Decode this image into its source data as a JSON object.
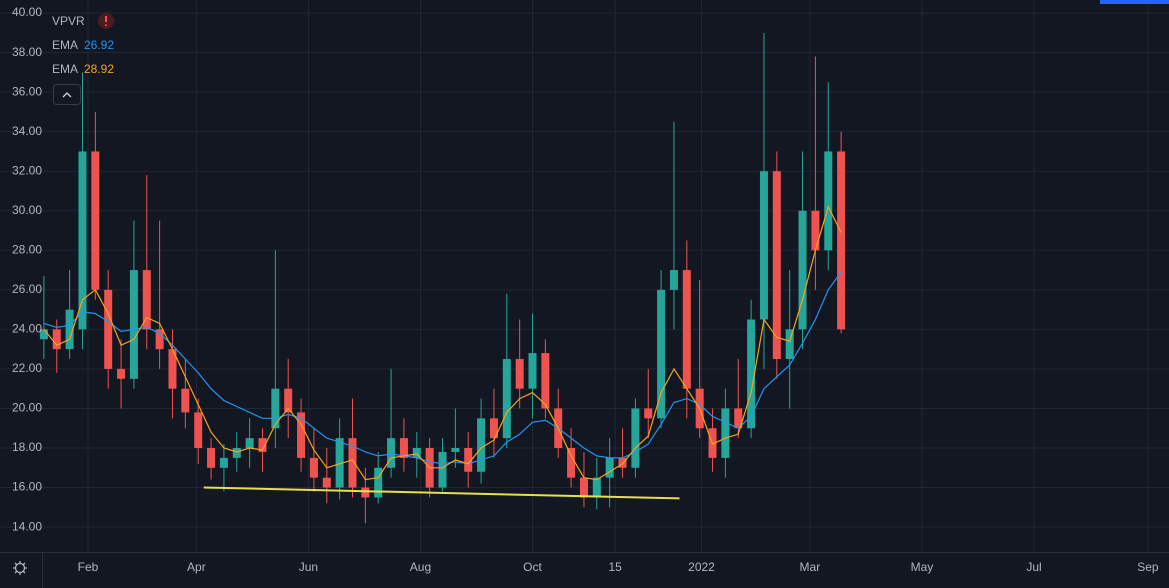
{
  "chart_data": {
    "type": "candlestick",
    "title": "VPVR",
    "x": [
      7,
      14,
      21,
      28,
      35,
      42,
      49,
      56,
      63,
      70,
      77,
      84,
      91,
      98,
      105,
      112,
      119,
      126,
      133,
      140,
      147,
      154,
      161,
      168,
      175,
      182,
      189,
      196,
      203,
      210,
      217,
      224,
      231,
      238,
      245,
      252,
      259,
      266,
      273,
      280,
      287,
      294,
      301,
      308,
      315,
      322,
      329,
      336,
      343,
      350,
      357,
      364,
      371,
      378,
      385,
      392,
      399,
      406,
      413,
      420,
      427,
      434,
      441
    ],
    "open": [
      23.5,
      24,
      23,
      24,
      33,
      26,
      22,
      21.5,
      27,
      24,
      23,
      21,
      19.8,
      18,
      17,
      17.5,
      18,
      18.5,
      19,
      21,
      19.8,
      17.5,
      16.5,
      16,
      18.5,
      16,
      15.5,
      17,
      18.5,
      17.5,
      18,
      16,
      17.8,
      18,
      16.8,
      19.5,
      18.5,
      22.5,
      21,
      22.8,
      20,
      18,
      16.5,
      15.5,
      16.5,
      17.5,
      17,
      20,
      19.5,
      26,
      27,
      21,
      19,
      17.5,
      20,
      19,
      24.5,
      32,
      22.5,
      24,
      30,
      28,
      33
    ],
    "high": [
      26.7,
      24.5,
      27,
      37,
      35,
      27,
      23.5,
      29.5,
      31.8,
      29.5,
      24,
      22.5,
      20.5,
      18.5,
      18.2,
      18.8,
      19.5,
      19,
      28,
      22.5,
      20.5,
      19,
      18,
      19.5,
      20.5,
      17,
      17.8,
      22,
      19.5,
      18.8,
      18.5,
      18.5,
      20,
      18.8,
      20.5,
      21,
      25.8,
      24.5,
      24.8,
      23.5,
      21,
      19,
      17.8,
      17.5,
      18.5,
      19,
      20.5,
      22,
      27,
      34.5,
      28.5,
      26.5,
      20,
      21,
      22.5,
      25.5,
      39,
      33,
      27,
      33,
      37.8,
      36.5,
      34
    ],
    "low": [
      22.5,
      21.8,
      22.5,
      23,
      25.5,
      21,
      20,
      21,
      23,
      22,
      19.5,
      19,
      17.2,
      16.4,
      15.8,
      16.8,
      17,
      16.8,
      18,
      18.5,
      16.8,
      15.8,
      15.2,
      15.4,
      15.5,
      14.2,
      15.2,
      16.5,
      16.8,
      16.5,
      15.5,
      15.8,
      17,
      16,
      16.2,
      17.5,
      18,
      20,
      19.5,
      19.5,
      17.5,
      16,
      15,
      14.9,
      15,
      16.5,
      16.5,
      18.5,
      19,
      24,
      19.5,
      18.5,
      16.8,
      16.5,
      18.5,
      18.5,
      22,
      21.5,
      20,
      23,
      26,
      27,
      23.8
    ],
    "close": [
      24,
      23,
      25,
      33,
      26,
      22,
      21.5,
      27,
      24,
      23,
      21,
      19.8,
      18,
      17,
      17.5,
      18,
      18.5,
      17.8,
      21,
      19.8,
      17.5,
      16.5,
      16,
      18.5,
      16,
      15.5,
      17,
      18.5,
      17.5,
      18,
      16,
      17.8,
      18,
      16.8,
      19.5,
      18.5,
      22.5,
      21,
      22.8,
      20,
      18,
      16.5,
      15.5,
      16.5,
      17.5,
      17,
      20,
      19.5,
      26,
      27,
      21,
      19,
      17.5,
      20,
      19,
      24.5,
      32,
      22.5,
      24,
      30,
      28,
      33,
      24
    ],
    "up_color": "#26a69a",
    "down_color": "#ef5350",
    "series": [
      {
        "name": "EMA",
        "legend_value": "26.92",
        "color": "#2196f3",
        "values": [
          24.3,
          24.1,
          24.2,
          24.9,
          24.8,
          24.4,
          23.9,
          24.0,
          24.1,
          23.8,
          23.2,
          22.5,
          21.8,
          21.0,
          20.4,
          20.1,
          19.8,
          19.5,
          19.5,
          19.7,
          19.5,
          19.0,
          18.5,
          18.3,
          18.1,
          17.8,
          17.6,
          17.7,
          17.6,
          17.5,
          17.3,
          17.2,
          17.3,
          17.2,
          17.4,
          17.6,
          18.3,
          18.7,
          19.3,
          19.4,
          19.0,
          18.5,
          18.0,
          17.6,
          17.5,
          17.5,
          17.8,
          18.2,
          19.2,
          20.3,
          20.5,
          20.2,
          19.6,
          19.3,
          19.0,
          19.6,
          21.0,
          21.6,
          22.2,
          23.3,
          24.5,
          26.0,
          26.9
        ]
      },
      {
        "name": "EMA",
        "legend_value": "28.92",
        "color": "#f7a21b",
        "values": [
          24.0,
          23.2,
          23.5,
          25.5,
          26.0,
          24.8,
          23.2,
          23.5,
          24.6,
          24.3,
          23.0,
          21.6,
          20.2,
          18.8,
          18.0,
          17.8,
          18.0,
          17.9,
          19.2,
          20.0,
          19.2,
          17.9,
          17.0,
          17.2,
          17.4,
          16.4,
          16.5,
          17.5,
          17.6,
          17.7,
          17.0,
          17.0,
          17.4,
          17.2,
          18.0,
          18.4,
          19.8,
          20.5,
          20.8,
          20.2,
          19.0,
          17.6,
          16.5,
          16.4,
          16.8,
          17.2,
          18.0,
          18.6,
          20.8,
          22.0,
          21.0,
          20.0,
          18.2,
          18.5,
          18.7,
          20.8,
          24.5,
          23.6,
          23.4,
          25.5,
          28.0,
          30.2,
          28.9
        ]
      }
    ],
    "trendline": {
      "x": [
        94,
        353
      ],
      "values": [
        16.0,
        15.45
      ],
      "color": "#e6e04a"
    },
    "xlim": [
      -16.9,
      619.5
    ],
    "ylim": [
      12.74,
      40.66
    ],
    "xticks": [
      {
        "value": 31,
        "label": "Feb"
      },
      {
        "value": 90,
        "label": "Apr"
      },
      {
        "value": 151,
        "label": "Jun"
      },
      {
        "value": 212,
        "label": "Aug"
      },
      {
        "value": 273,
        "label": "Oct"
      },
      {
        "value": 318,
        "label": "15"
      },
      {
        "value": 365,
        "label": "2022"
      },
      {
        "value": 424,
        "label": "Mar"
      },
      {
        "value": 485,
        "label": "May"
      },
      {
        "value": 546,
        "label": "Jul"
      },
      {
        "value": 608,
        "label": "Sep"
      }
    ],
    "yticks": [
      {
        "value": 14,
        "label": "14.00"
      },
      {
        "value": 16,
        "label": "16.00"
      },
      {
        "value": 18,
        "label": "18.00"
      },
      {
        "value": 20,
        "label": "20.00"
      },
      {
        "value": 22,
        "label": "22.00"
      },
      {
        "value": 24,
        "label": "24.00"
      },
      {
        "value": 26,
        "label": "26.00"
      },
      {
        "value": 28,
        "label": "28.00"
      },
      {
        "value": 30,
        "label": "30.00"
      },
      {
        "value": 32,
        "label": "32.00"
      },
      {
        "value": 34,
        "label": "34.00"
      },
      {
        "value": 36,
        "label": "36.00"
      },
      {
        "value": 38,
        "label": "38.00"
      },
      {
        "value": 40,
        "label": "40.00"
      }
    ],
    "grid": true
  }
}
